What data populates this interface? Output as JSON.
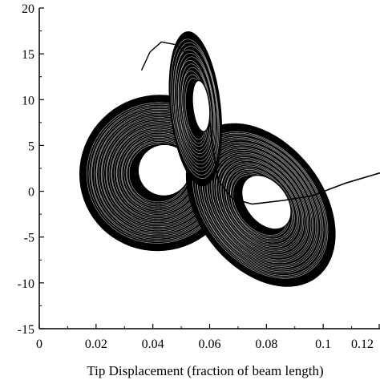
{
  "chart_data": {
    "type": "line",
    "title": "",
    "xlabel": "Tip Displacement (fraction of beam length)",
    "ylabel": "",
    "xlim": [
      0,
      0.12
    ],
    "ylim": [
      -15,
      20
    ],
    "x_ticks": [
      "0",
      "0.02",
      "0.04",
      "0.06",
      "0.08",
      "0.1",
      "0.12"
    ],
    "y_ticks": [
      "20",
      "15",
      "10",
      "5",
      "0",
      "-5",
      "-10",
      "-15"
    ],
    "grid": false,
    "legend": "none",
    "line_color": "#000000",
    "series": [
      {
        "description_style": "phase-plane chaotic trajectory (tip velocity vs. tip displacement)",
        "loops": [
          {
            "cx": 0.042,
            "cy": 2.0,
            "rx": 0.028,
            "ry": 8.5,
            "rot": -25,
            "count": 26
          },
          {
            "cx": 0.078,
            "cy": -1.5,
            "rx": 0.022,
            "ry": 10.0,
            "rot": -38,
            "count": 26
          },
          {
            "cx": 0.055,
            "cy": 9.0,
            "rx": 0.009,
            "ry": 8.5,
            "rot": -6,
            "count": 12
          }
        ],
        "transient": [
          [
            0.12,
            2.0
          ],
          [
            0.108,
            0.9
          ],
          [
            0.096,
            -0.5
          ],
          [
            0.086,
            -1.0
          ],
          [
            0.075,
            -1.4
          ],
          [
            0.068,
            -0.8
          ],
          [
            0.063,
            1.2
          ],
          [
            0.061,
            5.0
          ],
          [
            0.06,
            7.8
          ]
        ],
        "upper_arc": [
          [
            0.036,
            13.2
          ],
          [
            0.039,
            15.2
          ],
          [
            0.043,
            16.3
          ],
          [
            0.048,
            16.0
          ],
          [
            0.052,
            15.0
          ]
        ]
      }
    ]
  }
}
